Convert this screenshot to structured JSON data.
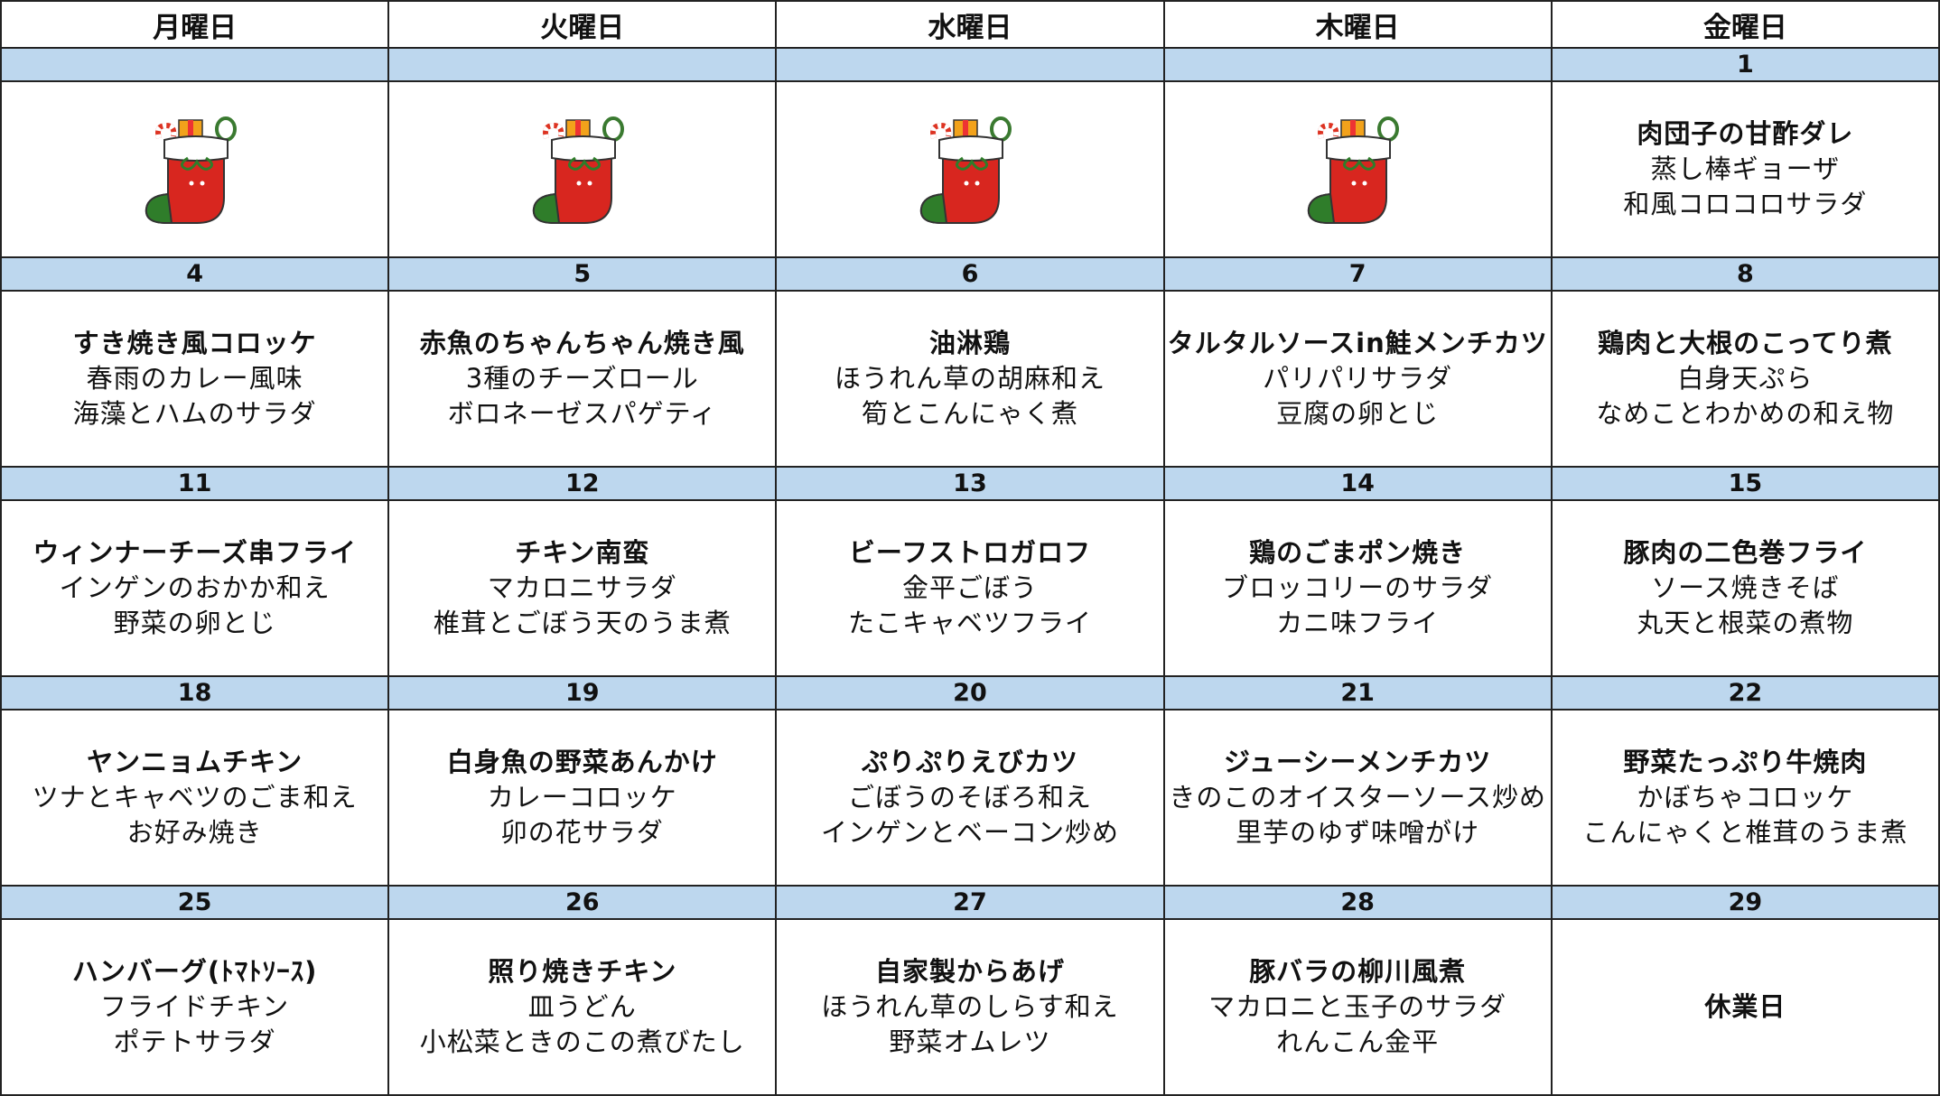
{
  "weekdays": [
    "月曜日",
    "火曜日",
    "水曜日",
    "木曜日",
    "金曜日"
  ],
  "weeks": [
    {
      "dates": [
        null,
        null,
        null,
        null,
        1
      ],
      "menus": [
        null,
        null,
        null,
        null,
        [
          "肉団子の甘酢ダレ",
          "蒸し棒ギョーザ",
          "和風コロコロサラダ"
        ]
      ]
    },
    {
      "dates": [
        4,
        5,
        6,
        7,
        8
      ],
      "menus": [
        [
          "すき焼き風コロッケ",
          "春雨のカレー風味",
          "海藻とハムのサラダ"
        ],
        [
          "赤魚のちゃんちゃん焼き風",
          "3種のチーズロール",
          "ボロネーゼスパゲティ"
        ],
        [
          "油淋鶏",
          "ほうれん草の胡麻和え",
          "筍とこんにゃく煮"
        ],
        [
          "タルタルソースin鮭メンチカツ",
          "パリパリサラダ",
          "豆腐の卵とじ"
        ],
        [
          "鶏肉と大根のこってり煮",
          "白身天ぷら",
          "なめことわかめの和え物"
        ]
      ]
    },
    {
      "dates": [
        11,
        12,
        13,
        14,
        15
      ],
      "menus": [
        [
          "ウィンナーチーズ串フライ",
          "インゲンのおかか和え",
          "野菜の卵とじ"
        ],
        [
          "チキン南蛮",
          "マカロニサラダ",
          "椎茸とごぼう天のうま煮"
        ],
        [
          "ビーフストロガロフ",
          "金平ごぼう",
          "たこキャベツフライ"
        ],
        [
          "鶏のごまポン焼き",
          "ブロッコリーのサラダ",
          "カニ味フライ"
        ],
        [
          "豚肉の二色巻フライ",
          "ソース焼きそば",
          "丸天と根菜の煮物"
        ]
      ]
    },
    {
      "dates": [
        18,
        19,
        20,
        21,
        22
      ],
      "menus": [
        [
          "ヤンニョムチキン",
          "ツナとキャベツのごま和え",
          "お好み焼き"
        ],
        [
          "白身魚の野菜あんかけ",
          "カレーコロッケ",
          "卯の花サラダ"
        ],
        [
          "ぷりぷりえびカツ",
          "ごぼうのそぼろ和え",
          "インゲンとベーコン炒め"
        ],
        [
          "ジューシーメンチカツ",
          "きのこのオイスターソース炒め",
          "里芋のゆず味噌がけ"
        ],
        [
          "野菜たっぷり牛焼肉",
          "かぼちゃコロッケ",
          "こんにゃくと椎茸のうま煮"
        ]
      ]
    },
    {
      "dates": [
        25,
        26,
        27,
        28,
        29
      ],
      "menus": [
        [
          "ハンバーグ(ﾄﾏﾄｿｰｽ)",
          "フライドチキン",
          "ポテトサラダ"
        ],
        [
          "照り焼きチキン",
          "皿うどん",
          "小松菜ときのこの煮びたし"
        ],
        [
          "自家製からあげ",
          "ほうれん草のしらす和え",
          "野菜オムレツ"
        ],
        [
          "豚バラの柳川風煮",
          "マカロニと玉子のサラダ",
          "れんこん金平"
        ],
        [
          "休業日"
        ]
      ]
    }
  ]
}
